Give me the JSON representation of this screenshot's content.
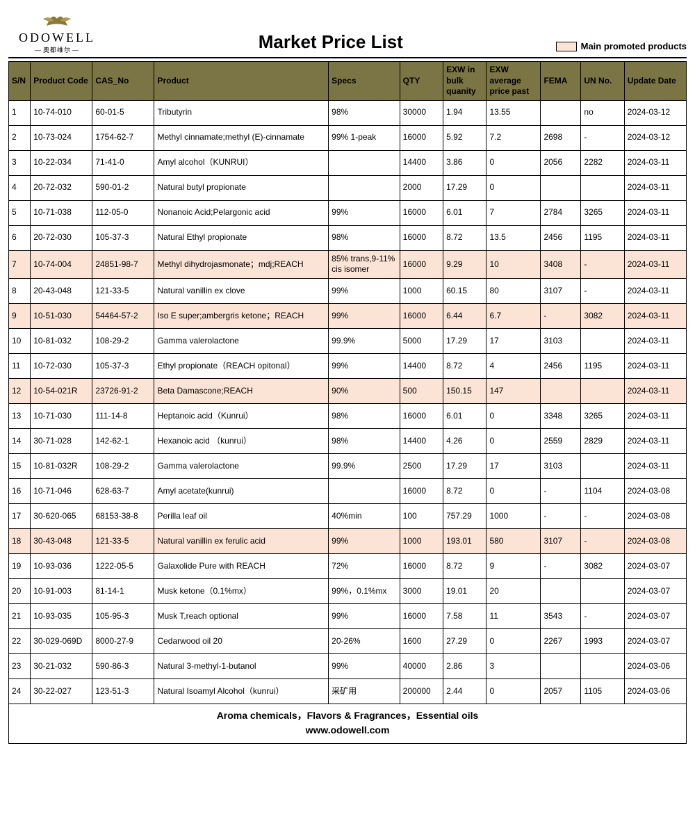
{
  "brand": {
    "name": "ODOWELL",
    "sub": "奥都维尔"
  },
  "title": "Market Price List",
  "legend_label": "Main promoted products",
  "colors": {
    "header_bg": "#7b7444",
    "promoted_bg": "#fbe3d6",
    "border": "#000000"
  },
  "columns": [
    "S/N",
    "Product Code",
    "CAS_No",
    "Product",
    "Specs",
    "QTY",
    "EXW in bulk quanity",
    "EXW average price past",
    "FEMA",
    "UN No.",
    "Update Date"
  ],
  "rows": [
    {
      "sn": "1",
      "code": "10-74-010",
      "cas": "60-01-5",
      "product": "Tributyrin",
      "specs": "98%",
      "qty": "30000",
      "bulk": "1.94",
      "avg": "13.55",
      "fema": "",
      "un": "no",
      "date": "2024-03-12",
      "promoted": false
    },
    {
      "sn": "2",
      "code": "10-73-024",
      "cas": "1754-62-7",
      "product": "Methyl cinnamate;methyl (E)-cinnamate",
      "specs": "99% 1-peak",
      "qty": "16000",
      "bulk": "5.92",
      "avg": "7.2",
      "fema": "2698",
      "un": "-",
      "date": "2024-03-12",
      "promoted": false
    },
    {
      "sn": "3",
      "code": "10-22-034",
      "cas": "71-41-0",
      "product": "Amyl alcohol（KUNRUI）",
      "specs": "",
      "qty": "14400",
      "bulk": "3.86",
      "avg": "0",
      "fema": "2056",
      "un": "2282",
      "date": "2024-03-11",
      "promoted": false
    },
    {
      "sn": "4",
      "code": "20-72-032",
      "cas": "590-01-2",
      "product": "Natural butyl propionate",
      "specs": "",
      "qty": "2000",
      "bulk": "17.29",
      "avg": "0",
      "fema": "",
      "un": "",
      "date": "2024-03-11",
      "promoted": false
    },
    {
      "sn": "5",
      "code": "10-71-038",
      "cas": "112-05-0",
      "product": "Nonanoic Acid;Pelargonic acid",
      "specs": "99%",
      "qty": "16000",
      "bulk": "6.01",
      "avg": "7",
      "fema": "2784",
      "un": "3265",
      "date": "2024-03-11",
      "promoted": false
    },
    {
      "sn": "6",
      "code": "20-72-030",
      "cas": "105-37-3",
      "product": "Natural Ethyl propionate",
      "specs": "98%",
      "qty": "16000",
      "bulk": "8.72",
      "avg": "13.5",
      "fema": "2456",
      "un": "1195",
      "date": "2024-03-11",
      "promoted": false
    },
    {
      "sn": "7",
      "code": "10-74-004",
      "cas": "24851-98-7",
      "product": "Methyl dihydrojasmonate；mdj;REACH",
      "specs": "85% trans,9-11% cis isomer",
      "qty": "16000",
      "bulk": "9.29",
      "avg": "10",
      "fema": "3408",
      "un": "-",
      "date": "2024-03-11",
      "promoted": true
    },
    {
      "sn": "8",
      "code": "20-43-048",
      "cas": "121-33-5",
      "product": "Natural vanillin ex clove",
      "specs": "99%",
      "qty": "1000",
      "bulk": "60.15",
      "avg": "80",
      "fema": "3107",
      "un": "-",
      "date": "2024-03-11",
      "promoted": false
    },
    {
      "sn": "9",
      "code": "10-51-030",
      "cas": "54464-57-2",
      "product": "Iso E super;ambergris ketone；REACH",
      "specs": "99%",
      "qty": "16000",
      "bulk": "6.44",
      "avg": "6.7",
      "fema": "-",
      "un": "3082",
      "date": "2024-03-11",
      "promoted": true
    },
    {
      "sn": "10",
      "code": "10-81-032",
      "cas": "108-29-2",
      "product": "Gamma valerolactone",
      "specs": "99.9%",
      "qty": "5000",
      "bulk": "17.29",
      "avg": "17",
      "fema": "3103",
      "un": "",
      "date": "2024-03-11",
      "promoted": false
    },
    {
      "sn": "11",
      "code": "10-72-030",
      "cas": "105-37-3",
      "product": "Ethyl propionate（REACH opitonal）",
      "specs": "99%",
      "qty": "14400",
      "bulk": "8.72",
      "avg": "4",
      "fema": "2456",
      "un": "1195",
      "date": "2024-03-11",
      "promoted": false
    },
    {
      "sn": "12",
      "code": "10-54-021R",
      "cas": "23726-91-2",
      "product": "Beta Damascone;REACH",
      "specs": "90%",
      "qty": "500",
      "bulk": "150.15",
      "avg": "147",
      "fema": "",
      "un": "",
      "date": "2024-03-11",
      "promoted": true
    },
    {
      "sn": "13",
      "code": "10-71-030",
      "cas": "111-14-8",
      "product": "Heptanoic acid（Kunrui）",
      "specs": "98%",
      "qty": "16000",
      "bulk": "6.01",
      "avg": "0",
      "fema": "3348",
      "un": "3265",
      "date": "2024-03-11",
      "promoted": false
    },
    {
      "sn": "14",
      "code": "30-71-028",
      "cas": "142-62-1",
      "product": "Hexanoic acid （kunrui）",
      "specs": "98%",
      "qty": "14400",
      "bulk": "4.26",
      "avg": "0",
      "fema": "2559",
      "un": "2829",
      "date": "2024-03-11",
      "promoted": false
    },
    {
      "sn": "15",
      "code": "10-81-032R",
      "cas": "108-29-2",
      "product": "Gamma valerolactone",
      "specs": "99.9%",
      "qty": "2500",
      "bulk": "17.29",
      "avg": "17",
      "fema": "3103",
      "un": "",
      "date": "2024-03-11",
      "promoted": false
    },
    {
      "sn": "16",
      "code": "10-71-046",
      "cas": "628-63-7",
      "product": "Amyl acetate(kunrui)",
      "specs": "",
      "qty": "16000",
      "bulk": "8.72",
      "avg": "0",
      "fema": "-",
      "un": "1104",
      "date": "2024-03-08",
      "promoted": false
    },
    {
      "sn": "17",
      "code": "30-620-065",
      "cas": "68153-38-8",
      "product": "Perilla leaf oil",
      "specs": "40%min",
      "qty": "100",
      "bulk": "757.29",
      "avg": "1000",
      "fema": "-",
      "un": "-",
      "date": "2024-03-08",
      "promoted": false
    },
    {
      "sn": "18",
      "code": "30-43-048",
      "cas": "121-33-5",
      "product": "Natural vanillin ex ferulic acid",
      "specs": "99%",
      "qty": "1000",
      "bulk": "193.01",
      "avg": "580",
      "fema": "3107",
      "un": "-",
      "date": "2024-03-08",
      "promoted": true
    },
    {
      "sn": "19",
      "code": "10-93-036",
      "cas": "1222-05-5",
      "product": "Galaxolide Pure with REACH",
      "specs": "72%",
      "qty": "16000",
      "bulk": "8.72",
      "avg": "9",
      "fema": "-",
      "un": "3082",
      "date": "2024-03-07",
      "promoted": false
    },
    {
      "sn": "20",
      "code": "10-91-003",
      "cas": "81-14-1",
      "product": "Musk ketone（0.1%mx）",
      "specs": "99%，0.1%mx",
      "qty": "3000",
      "bulk": "19.01",
      "avg": "20",
      "fema": "",
      "un": "",
      "date": "2024-03-07",
      "promoted": false
    },
    {
      "sn": "21",
      "code": "10-93-035",
      "cas": "105-95-3",
      "product": "Musk T,reach optional",
      "specs": "99%",
      "qty": "16000",
      "bulk": "7.58",
      "avg": "11",
      "fema": "3543",
      "un": "-",
      "date": "2024-03-07",
      "promoted": false
    },
    {
      "sn": "22",
      "code": "30-029-069D",
      "cas": "8000-27-9",
      "product": "Cedarwood oil 20",
      "specs": "20-26%",
      "qty": "1600",
      "bulk": "27.29",
      "avg": "0",
      "fema": "2267",
      "un": "1993",
      "date": "2024-03-07",
      "promoted": false
    },
    {
      "sn": "23",
      "code": "30-21-032",
      "cas": "590-86-3",
      "product": "Natural 3-methyl-1-butanol",
      "specs": "99%",
      "qty": "40000",
      "bulk": "2.86",
      "avg": "3",
      "fema": "",
      "un": "",
      "date": "2024-03-06",
      "promoted": false
    },
    {
      "sn": "24",
      "code": "30-22-027",
      "cas": "123-51-3",
      "product": "Natural Isoamyl Alcohol（kunrui）",
      "specs": "采矿用",
      "qty": "200000",
      "bulk": "2.44",
      "avg": "0",
      "fema": "2057",
      "un": "1105",
      "date": "2024-03-06",
      "promoted": false
    }
  ],
  "footer": {
    "line1": "Aroma chemicals，Flavors & Fragrances，Essential oils",
    "line2": "www.odowell.com"
  }
}
